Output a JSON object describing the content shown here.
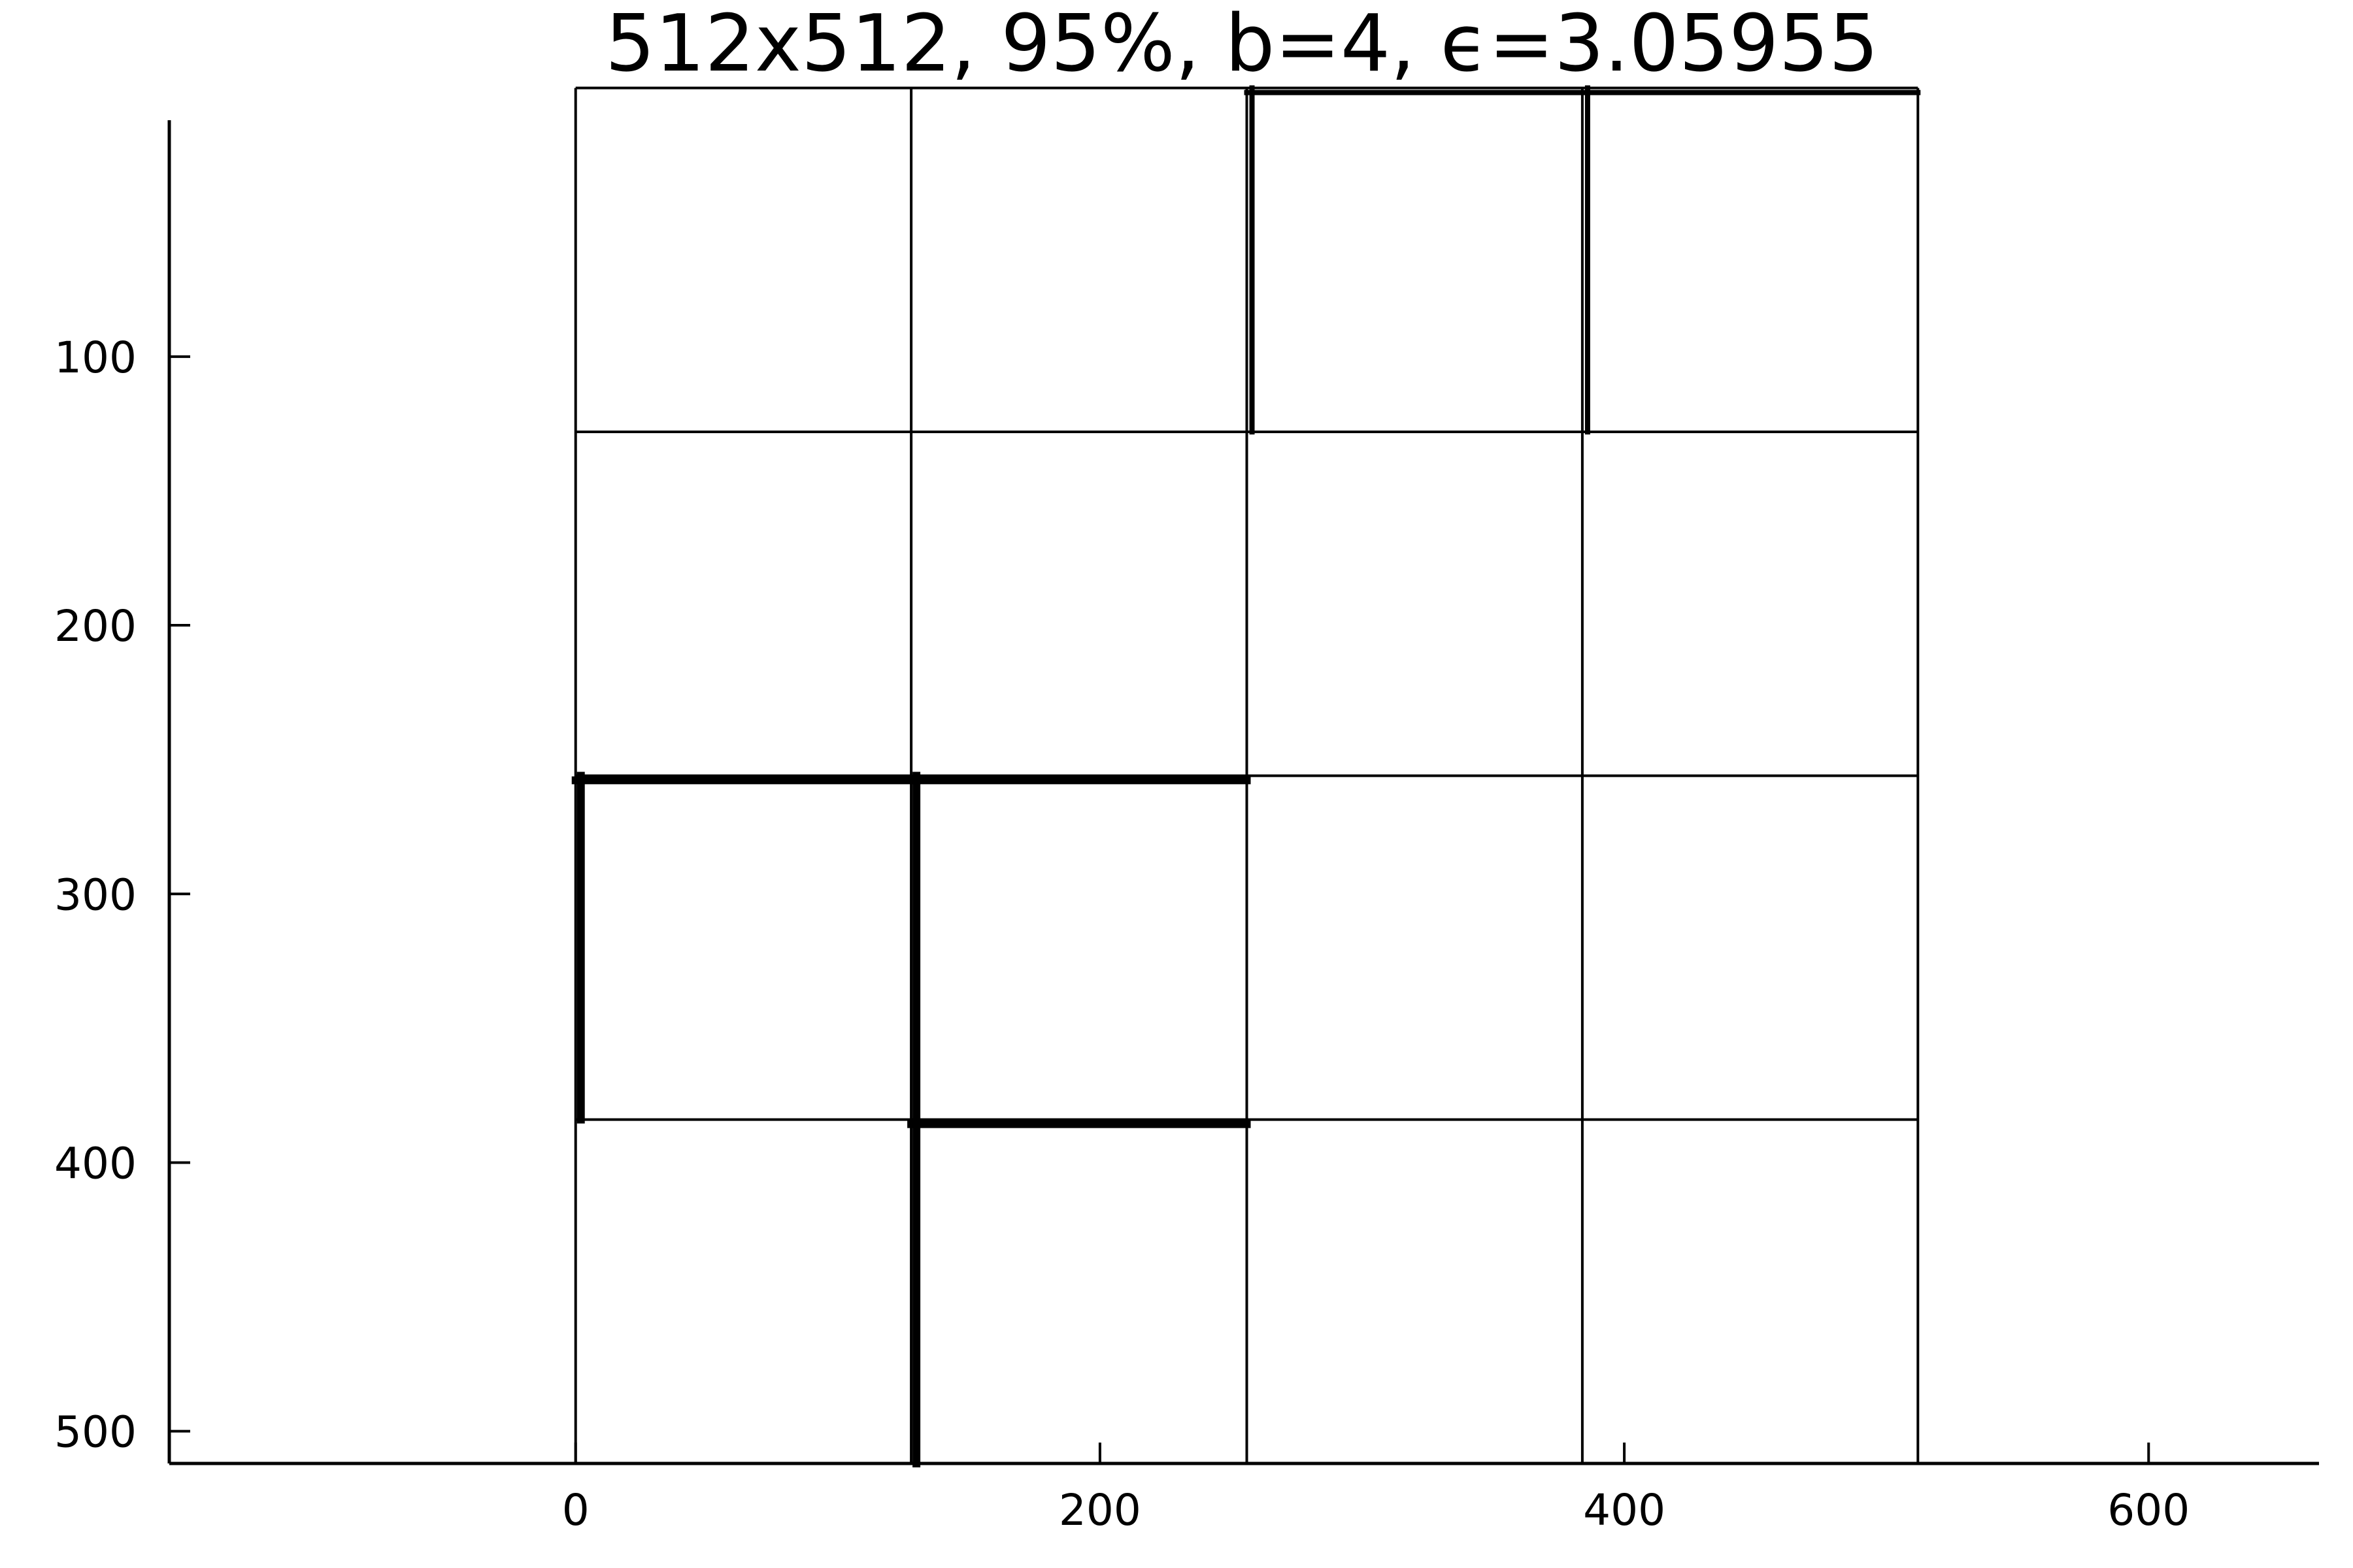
{
  "chart_data": {
    "type": "heatmap",
    "title": "512x512, 95%, b=4, ϵ=3.05955",
    "xlabel": "",
    "ylabel": "",
    "xlim": [
      -155,
      665
    ],
    "ylim": [
      512,
      12
    ],
    "x_ticks": [
      0,
      200,
      400,
      600
    ],
    "x_tick_labels": [
      "0",
      "200",
      "400",
      "600"
    ],
    "y_ticks": [
      100,
      200,
      300,
      400,
      500
    ],
    "y_tick_labels": [
      "100",
      "200",
      "300",
      "400",
      "500"
    ],
    "grid": false,
    "y_axis_inverted": true,
    "image_extent": [
      0,
      512,
      0,
      512
    ],
    "block_count_per_side": 4,
    "block_size": 128,
    "block_boundaries": [
      0,
      128,
      256,
      384,
      512
    ],
    "highlighted_edges": [
      {
        "x": [
          256,
          512
        ],
        "y": [
          0,
          0
        ]
      },
      {
        "x": [
          256,
          256
        ],
        "y": [
          0,
          128
        ]
      },
      {
        "x": [
          384,
          384
        ],
        "y": [
          0,
          128
        ]
      },
      {
        "x": [
          0,
          256
        ],
        "y": [
          256,
          256
        ]
      },
      {
        "x": [
          0,
          0
        ],
        "y": [
          256,
          384
        ]
      },
      {
        "x": [
          128,
          128
        ],
        "y": [
          256,
          512
        ]
      },
      {
        "x": [
          128,
          256
        ],
        "y": [
          384,
          384
        ]
      }
    ],
    "colors": {
      "line": "#000000",
      "background": "#ffffff"
    }
  }
}
